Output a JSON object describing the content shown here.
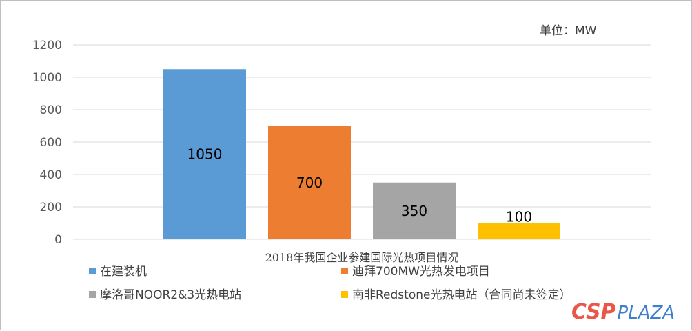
{
  "chart_data": {
    "type": "bar",
    "unit_label": "单位：MW",
    "categories": [
      "2018年我国企业参建国际光热项目情况"
    ],
    "series": [
      {
        "name": "在建装机",
        "values": [
          1050
        ],
        "color": "#5b9bd5"
      },
      {
        "name": "迪拜700MW光热发电项目",
        "values": [
          700
        ],
        "color": "#ed7d31"
      },
      {
        "name": "摩洛哥NOOR2&3光热电站",
        "values": [
          350
        ],
        "color": "#a5a5a5"
      },
      {
        "name": "南非Redstone光热电站（合同尚未签定）",
        "values": [
          100
        ],
        "color": "#ffc000"
      }
    ],
    "ylim": [
      0,
      1200
    ],
    "yticks": [
      "0",
      "200",
      "400",
      "600",
      "800",
      "1000",
      "1200"
    ],
    "data_labels": [
      "1050",
      "700",
      "350",
      "100"
    ],
    "grid": true,
    "legend_position": "bottom"
  },
  "watermark": {
    "part1": "CSP",
    "part2": "PLAZA"
  }
}
